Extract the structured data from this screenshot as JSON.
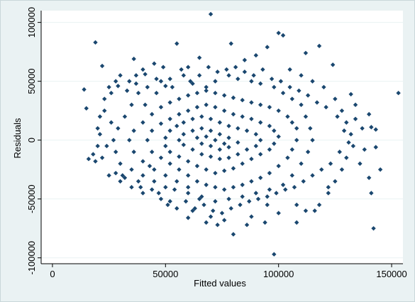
{
  "colors": {
    "outer_background": "#eaf2f3",
    "plot_background": "#ffffff",
    "marker": "#1a476f",
    "grid": "#eaf2f3",
    "axis": "#000000"
  },
  "chart_data": {
    "type": "scatter",
    "title": "",
    "xlabel": "Fitted values",
    "ylabel": "Residuals",
    "xlim": [
      -5000,
      155000
    ],
    "ylim": [
      -105000,
      110000
    ],
    "xticks": [
      0,
      50000,
      100000,
      150000
    ],
    "xtick_labels": [
      "0",
      "50000",
      "100000",
      "150000"
    ],
    "yticks": [
      -100000,
      -50000,
      0,
      50000,
      100000
    ],
    "ytick_labels": [
      "-100000",
      "-50000",
      "0",
      "50000",
      "100000"
    ],
    "grid": "horizontal",
    "marker_shape": "diamond",
    "series": [
      {
        "values": [
          [
            70000,
            107000
          ],
          [
            55000,
            82000
          ],
          [
            19000,
            83000
          ],
          [
            100000,
            91000
          ],
          [
            102000,
            89000
          ],
          [
            79000,
            82000
          ],
          [
            118000,
            80000
          ],
          [
            95000,
            79000
          ],
          [
            112000,
            74000
          ],
          [
            36000,
            69000
          ],
          [
            124000,
            64000
          ],
          [
            22000,
            63000
          ],
          [
            132000,
            39000
          ],
          [
            153000,
            40000
          ],
          [
            140000,
            22000
          ],
          [
            14000,
            43000
          ],
          [
            15000,
            27000
          ],
          [
            141000,
            11000
          ],
          [
            143000,
            9000
          ],
          [
            137000,
            10000
          ],
          [
            143000,
            -6000
          ],
          [
            145000,
            -25000
          ],
          [
            140000,
            -32000
          ],
          [
            141000,
            -45000
          ],
          [
            142000,
            -75000
          ],
          [
            98000,
            -97000
          ],
          [
            80000,
            -80000
          ],
          [
            73000,
            -72000
          ],
          [
            108000,
            -70000
          ],
          [
            88000,
            -65000
          ],
          [
            62000,
            -60000
          ],
          [
            48000,
            -50000
          ],
          [
            40000,
            -45000
          ],
          [
            35000,
            -40000
          ],
          [
            30000,
            -35000
          ],
          [
            25000,
            -30000
          ],
          [
            16000,
            -16000
          ],
          [
            18000,
            -12000
          ],
          [
            20000,
            -5000
          ],
          [
            20000,
            10000
          ],
          [
            21000,
            20000
          ],
          [
            23000,
            35000
          ],
          [
            25000,
            45000
          ],
          [
            28000,
            50000
          ],
          [
            30000,
            55000
          ],
          [
            40000,
            60000
          ],
          [
            45000,
            65000
          ],
          [
            60000,
            62000
          ],
          [
            65000,
            70000
          ],
          [
            85000,
            68000
          ],
          [
            90000,
            72000
          ],
          [
            105000,
            60000
          ],
          [
            110000,
            55000
          ],
          [
            115000,
            50000
          ],
          [
            120000,
            45000
          ],
          [
            125000,
            35000
          ],
          [
            128000,
            25000
          ],
          [
            130000,
            15000
          ],
          [
            132000,
            5000
          ],
          [
            133000,
            -5000
          ],
          [
            130000,
            -15000
          ],
          [
            128000,
            -25000
          ],
          [
            125000,
            -35000
          ],
          [
            122000,
            -45000
          ],
          [
            118000,
            -55000
          ],
          [
            112000,
            -60000
          ],
          [
            100000,
            -62000
          ],
          [
            95000,
            -55000
          ],
          [
            70000,
            -65000
          ],
          [
            55000,
            -58000
          ],
          [
            65000,
            -50000
          ],
          [
            60000,
            -45000
          ],
          [
            50000,
            -40000
          ],
          [
            45000,
            -35000
          ],
          [
            40000,
            -30000
          ],
          [
            35000,
            -25000
          ],
          [
            30000,
            -20000
          ],
          [
            28000,
            -10000
          ],
          [
            27000,
            0
          ],
          [
            29000,
            10000
          ],
          [
            32000,
            20000
          ],
          [
            35000,
            30000
          ],
          [
            38000,
            40000
          ],
          [
            42000,
            45000
          ],
          [
            48000,
            50000
          ],
          [
            52000,
            52000
          ],
          [
            58000,
            55000
          ],
          [
            62000,
            48000
          ],
          [
            68000,
            45000
          ],
          [
            72000,
            50000
          ],
          [
            78000,
            55000
          ],
          [
            82000,
            52000
          ],
          [
            88000,
            50000
          ],
          [
            92000,
            48000
          ],
          [
            98000,
            45000
          ],
          [
            102000,
            40000
          ],
          [
            106000,
            35000
          ],
          [
            110000,
            30000
          ],
          [
            112000,
            20000
          ],
          [
            114000,
            10000
          ],
          [
            115000,
            0
          ],
          [
            113000,
            -10000
          ],
          [
            110000,
            -20000
          ],
          [
            106000,
            -30000
          ],
          [
            102000,
            -38000
          ],
          [
            96000,
            -42000
          ],
          [
            90000,
            -45000
          ],
          [
            84000,
            -48000
          ],
          [
            78000,
            -50000
          ],
          [
            72000,
            -52000
          ],
          [
            66000,
            -48000
          ],
          [
            60000,
            -40000
          ],
          [
            55000,
            -35000
          ],
          [
            50000,
            -30000
          ],
          [
            45000,
            -25000
          ],
          [
            40000,
            -18000
          ],
          [
            36000,
            -10000
          ],
          [
            34000,
            0
          ],
          [
            36000,
            8000
          ],
          [
            40000,
            15000
          ],
          [
            44000,
            22000
          ],
          [
            48000,
            28000
          ],
          [
            52000,
            32000
          ],
          [
            56000,
            35000
          ],
          [
            60000,
            38000
          ],
          [
            64000,
            40000
          ],
          [
            68000,
            42000
          ],
          [
            72000,
            40000
          ],
          [
            76000,
            38000
          ],
          [
            80000,
            36000
          ],
          [
            84000,
            34000
          ],
          [
            88000,
            32000
          ],
          [
            92000,
            30000
          ],
          [
            96000,
            28000
          ],
          [
            100000,
            25000
          ],
          [
            104000,
            20000
          ],
          [
            106000,
            15000
          ],
          [
            108000,
            10000
          ],
          [
            108000,
            0
          ],
          [
            106000,
            -8000
          ],
          [
            104000,
            -15000
          ],
          [
            100000,
            -22000
          ],
          [
            96000,
            -28000
          ],
          [
            92000,
            -32000
          ],
          [
            88000,
            -35000
          ],
          [
            84000,
            -38000
          ],
          [
            80000,
            -40000
          ],
          [
            76000,
            -42000
          ],
          [
            72000,
            -40000
          ],
          [
            68000,
            -38000
          ],
          [
            64000,
            -35000
          ],
          [
            60000,
            -30000
          ],
          [
            56000,
            -25000
          ],
          [
            52000,
            -20000
          ],
          [
            48000,
            -15000
          ],
          [
            44000,
            -10000
          ],
          [
            42000,
            0
          ],
          [
            44000,
            8000
          ],
          [
            48000,
            14000
          ],
          [
            52000,
            18000
          ],
          [
            56000,
            22000
          ],
          [
            60000,
            25000
          ],
          [
            64000,
            28000
          ],
          [
            68000,
            30000
          ],
          [
            72000,
            28000
          ],
          [
            76000,
            25000
          ],
          [
            80000,
            22000
          ],
          [
            84000,
            20000
          ],
          [
            88000,
            18000
          ],
          [
            92000,
            15000
          ],
          [
            96000,
            12000
          ],
          [
            98000,
            8000
          ],
          [
            100000,
            3000
          ],
          [
            98000,
            -3000
          ],
          [
            96000,
            -8000
          ],
          [
            92000,
            -12000
          ],
          [
            88000,
            -16000
          ],
          [
            84000,
            -20000
          ],
          [
            80000,
            -24000
          ],
          [
            76000,
            -26000
          ],
          [
            72000,
            -28000
          ],
          [
            68000,
            -25000
          ],
          [
            64000,
            -22000
          ],
          [
            60000,
            -18000
          ],
          [
            56000,
            -14000
          ],
          [
            52000,
            -10000
          ],
          [
            50000,
            -5000
          ],
          [
            50000,
            2000
          ],
          [
            52000,
            8000
          ],
          [
            55000,
            12000
          ],
          [
            58000,
            15000
          ],
          [
            62000,
            18000
          ],
          [
            66000,
            20000
          ],
          [
            70000,
            18000
          ],
          [
            74000,
            15000
          ],
          [
            78000,
            12000
          ],
          [
            82000,
            10000
          ],
          [
            86000,
            8000
          ],
          [
            90000,
            5000
          ],
          [
            92000,
            0
          ],
          [
            90000,
            -5000
          ],
          [
            86000,
            -8000
          ],
          [
            82000,
            -12000
          ],
          [
            78000,
            -15000
          ],
          [
            74000,
            -16000
          ],
          [
            70000,
            -14000
          ],
          [
            66000,
            -12000
          ],
          [
            62000,
            -8000
          ],
          [
            58000,
            -4000
          ],
          [
            56000,
            0
          ],
          [
            58000,
            5000
          ],
          [
            62000,
            8000
          ],
          [
            66000,
            10000
          ],
          [
            70000,
            8000
          ],
          [
            74000,
            5000
          ],
          [
            78000,
            2000
          ],
          [
            82000,
            -2000
          ],
          [
            78000,
            -6000
          ],
          [
            74000,
            -8000
          ],
          [
            70000,
            -5000
          ],
          [
            66000,
            -3000
          ],
          [
            64000,
            2000
          ],
          [
            68000,
            3000
          ],
          [
            72000,
            0
          ],
          [
            76000,
            -3000
          ],
          [
            24000,
            -5000
          ],
          [
            26000,
            15000
          ],
          [
            31000,
            -30000
          ],
          [
            33000,
            42000
          ],
          [
            37000,
            55000
          ],
          [
            39000,
            -40000
          ],
          [
            41000,
            30000
          ],
          [
            43000,
            -22000
          ],
          [
            46000,
            40000
          ],
          [
            47000,
            -45000
          ],
          [
            49000,
            62000
          ],
          [
            51000,
            -55000
          ],
          [
            53000,
            45000
          ],
          [
            54000,
            -42000
          ],
          [
            57000,
            60000
          ],
          [
            59000,
            -52000
          ],
          [
            61000,
            50000
          ],
          [
            63000,
            -58000
          ],
          [
            65000,
            55000
          ],
          [
            67000,
            -55000
          ],
          [
            69000,
            62000
          ],
          [
            71000,
            -60000
          ],
          [
            73000,
            58000
          ],
          [
            75000,
            -62000
          ],
          [
            77000,
            60000
          ],
          [
            79000,
            -58000
          ],
          [
            81000,
            62000
          ],
          [
            83000,
            -55000
          ],
          [
            85000,
            58000
          ],
          [
            87000,
            -52000
          ],
          [
            89000,
            55000
          ],
          [
            91000,
            -50000
          ],
          [
            93000,
            60000
          ],
          [
            95000,
            -48000
          ],
          [
            97000,
            52000
          ],
          [
            99000,
            -45000
          ],
          [
            101000,
            50000
          ],
          [
            103000,
            -42000
          ],
          [
            105000,
            45000
          ],
          [
            107000,
            -40000
          ],
          [
            109000,
            42000
          ],
          [
            111000,
            -35000
          ],
          [
            113000,
            38000
          ],
          [
            115000,
            -30000
          ],
          [
            117000,
            32000
          ],
          [
            119000,
            -25000
          ],
          [
            121000,
            28000
          ],
          [
            123000,
            -20000
          ],
          [
            126000,
            20000
          ],
          [
            127000,
            -10000
          ],
          [
            129000,
            8000
          ],
          [
            131000,
            -2000
          ],
          [
            134000,
            18000
          ],
          [
            136000,
            -20000
          ],
          [
            138000,
            -8000
          ],
          [
            134000,
            30000
          ],
          [
            122000,
            -40000
          ],
          [
            116000,
            -60000
          ],
          [
            108000,
            -55000
          ],
          [
            94000,
            -70000
          ],
          [
            86000,
            -72000
          ],
          [
            76000,
            -68000
          ],
          [
            68000,
            -70000
          ],
          [
            60000,
            -66000
          ],
          [
            52000,
            -52000
          ],
          [
            44000,
            -42000
          ],
          [
            38000,
            -35000
          ],
          [
            32000,
            -32000
          ],
          [
            28000,
            -28000
          ],
          [
            22000,
            -15000
          ],
          [
            19000,
            -18000
          ],
          [
            21000,
            5000
          ],
          [
            23000,
            25000
          ],
          [
            26000,
            40000
          ],
          [
            29000,
            46000
          ],
          [
            34000,
            50000
          ],
          [
            37000,
            48000
          ],
          [
            41000,
            56000
          ],
          [
            46000,
            52000
          ],
          [
            50000,
            46000
          ]
        ]
      }
    ]
  }
}
